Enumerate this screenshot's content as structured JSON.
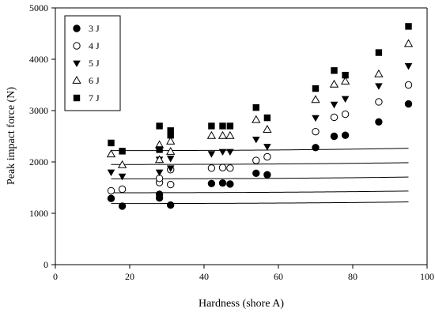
{
  "chart_data": {
    "type": "scatter",
    "title": "",
    "xlabel": "Hardness (shore A)",
    "ylabel": "Peak impact force (N)",
    "xlim": [
      0,
      100
    ],
    "ylim": [
      0,
      5000
    ],
    "xticks": [
      0,
      20,
      40,
      60,
      80,
      100
    ],
    "yticks": [
      0,
      1000,
      2000,
      3000,
      4000,
      5000
    ],
    "grid": false,
    "legend_position": "top-left",
    "series": [
      {
        "name": "3 J",
        "marker": "filled-circle",
        "points": [
          [
            15,
            1290
          ],
          [
            18,
            1140
          ],
          [
            28,
            1300
          ],
          [
            28,
            1370
          ],
          [
            31,
            1160
          ],
          [
            42,
            1580
          ],
          [
            45,
            1590
          ],
          [
            47,
            1570
          ],
          [
            54,
            1780
          ],
          [
            57,
            1750
          ],
          [
            70,
            2280
          ],
          [
            75,
            2500
          ],
          [
            78,
            2520
          ],
          [
            87,
            2780
          ],
          [
            95,
            3130
          ]
        ],
        "fit": [
          1190,
          0.000172,
          0.66
        ]
      },
      {
        "name": "4 J",
        "marker": "open-circle",
        "points": [
          [
            15,
            1440
          ],
          [
            18,
            1470
          ],
          [
            28,
            1600
          ],
          [
            28,
            1680
          ],
          [
            31,
            1560
          ],
          [
            31,
            1850
          ],
          [
            42,
            1880
          ],
          [
            45,
            1890
          ],
          [
            47,
            1880
          ],
          [
            54,
            2030
          ],
          [
            57,
            2100
          ],
          [
            70,
            2590
          ],
          [
            75,
            2870
          ],
          [
            78,
            2930
          ],
          [
            87,
            3170
          ],
          [
            95,
            3500
          ]
        ],
        "fit": [
          1400,
          0.0002,
          0.64
        ]
      },
      {
        "name": "5 J",
        "marker": "filled-triangle-down",
        "points": [
          [
            15,
            1800
          ],
          [
            18,
            1720
          ],
          [
            28,
            1800
          ],
          [
            28,
            2050
          ],
          [
            31,
            2070
          ],
          [
            31,
            1880
          ],
          [
            42,
            2160
          ],
          [
            45,
            2200
          ],
          [
            47,
            2200
          ],
          [
            54,
            2440
          ],
          [
            57,
            2300
          ],
          [
            70,
            2860
          ],
          [
            75,
            3120
          ],
          [
            78,
            3230
          ],
          [
            87,
            3480
          ],
          [
            95,
            3870
          ]
        ],
        "fit": [
          1670,
          0.00021,
          0.65
        ]
      },
      {
        "name": "6 J",
        "marker": "open-triangle-up",
        "points": [
          [
            15,
            2150
          ],
          [
            18,
            1940
          ],
          [
            28,
            2330
          ],
          [
            28,
            2040
          ],
          [
            31,
            2400
          ],
          [
            31,
            2200
          ],
          [
            42,
            2510
          ],
          [
            45,
            2510
          ],
          [
            47,
            2510
          ],
          [
            54,
            2820
          ],
          [
            57,
            2630
          ],
          [
            70,
            3210
          ],
          [
            75,
            3510
          ],
          [
            78,
            3570
          ],
          [
            87,
            3710
          ],
          [
            95,
            4300
          ]
        ],
        "fit": [
          1950,
          0.0002,
          0.66
        ]
      },
      {
        "name": "7 J",
        "marker": "filled-square",
        "points": [
          [
            15,
            2370
          ],
          [
            18,
            2210
          ],
          [
            28,
            2700
          ],
          [
            28,
            2240
          ],
          [
            31,
            2610
          ],
          [
            31,
            2520
          ],
          [
            42,
            2700
          ],
          [
            45,
            2700
          ],
          [
            47,
            2700
          ],
          [
            54,
            3060
          ],
          [
            57,
            2860
          ],
          [
            70,
            3430
          ],
          [
            75,
            3780
          ],
          [
            78,
            3690
          ],
          [
            87,
            4130
          ],
          [
            95,
            4640
          ]
        ],
        "fit": [
          2220,
          0.000205,
          0.71
        ]
      }
    ]
  }
}
